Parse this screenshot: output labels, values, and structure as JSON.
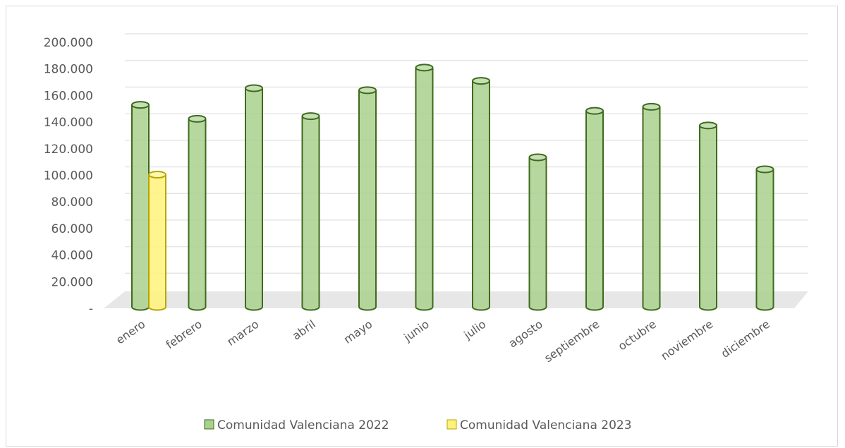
{
  "chart_data": {
    "type": "bar",
    "style": "3d-cylinder",
    "categories": [
      "enero",
      "febrero",
      "marzo",
      "abril",
      "mayo",
      "junio",
      "julio",
      "agosto",
      "septiembre",
      "octubre",
      "noviembre",
      "diciembre"
    ],
    "series": [
      {
        "name": "Comunidad Valenciana 2022",
        "color": "#a9d18e",
        "stroke": "#3f6a1e",
        "values": [
          153000,
          142500,
          165500,
          144500,
          164000,
          181000,
          171000,
          113500,
          148500,
          151500,
          137500,
          104500
        ]
      },
      {
        "name": "Comunidad Valenciana 2023",
        "color": "#fff27a",
        "stroke": "#b8a400",
        "values": [
          100500,
          null,
          null,
          null,
          null,
          null,
          null,
          null,
          null,
          null,
          null,
          null
        ]
      }
    ],
    "yticks": [
      "-",
      "20.000",
      "40.000",
      "60.000",
      "80.000",
      "100.000",
      "120.000",
      "140.000",
      "160.000",
      "180.000",
      "200.000"
    ],
    "ylim": [
      0,
      200000
    ],
    "grid": true,
    "legend": "bottom",
    "title": "",
    "xlabel": "",
    "ylabel": ""
  }
}
